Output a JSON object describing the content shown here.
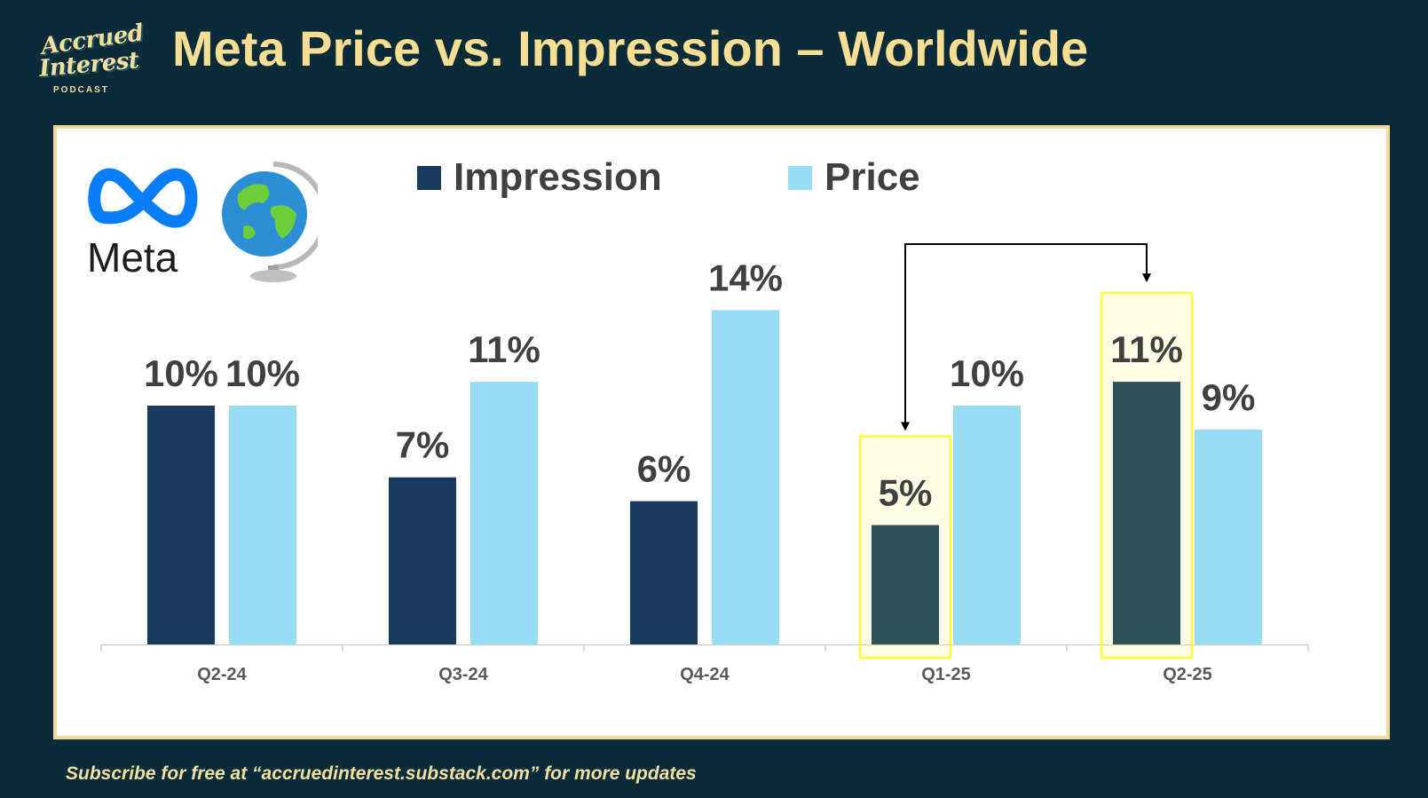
{
  "title": "Meta Price vs. Impression – Worldwide",
  "footer": "Subscribe for free at “accruedinterest.substack.com” for more updates",
  "logo": {
    "line1": "Accrued",
    "line2": "Interest",
    "line3": "PODCAST"
  },
  "brand": {
    "name": "Meta",
    "icon": "meta-infinity-icon",
    "globe_icon": "globe-icon"
  },
  "colors": {
    "background": "#0c2b39",
    "title": "#f6df95",
    "impression": "#183a5e",
    "impression_highlighted": "#2e525a",
    "price": "#97dbf5",
    "highlight_box": "#ffff33",
    "meta_blue": "#0a7ef9"
  },
  "legend": [
    {
      "label": "Impression",
      "color": "#183a5e"
    },
    {
      "label": "Price",
      "color": "#97dbf5"
    }
  ],
  "chart_data": {
    "type": "bar",
    "categories": [
      "Q2-24",
      "Q3-24",
      "Q4-24",
      "Q1-25",
      "Q2-25"
    ],
    "series": [
      {
        "name": "Impression",
        "values": [
          10,
          7,
          6,
          5,
          11
        ],
        "labels": [
          "10%",
          "7%",
          "6%",
          "5%",
          "11%"
        ]
      },
      {
        "name": "Price",
        "values": [
          10,
          11,
          14,
          10,
          9
        ],
        "labels": [
          "10%",
          "11%",
          "14%",
          "10%",
          "9%"
        ]
      }
    ],
    "unit": "%",
    "ylim": [
      0,
      16
    ],
    "grid": false,
    "legend_position": "top",
    "highlighted_impressions": [
      "Q1-25",
      "Q2-25"
    ],
    "annotation": "arrow from Q1-25 Impression to Q2-25 Impression"
  }
}
